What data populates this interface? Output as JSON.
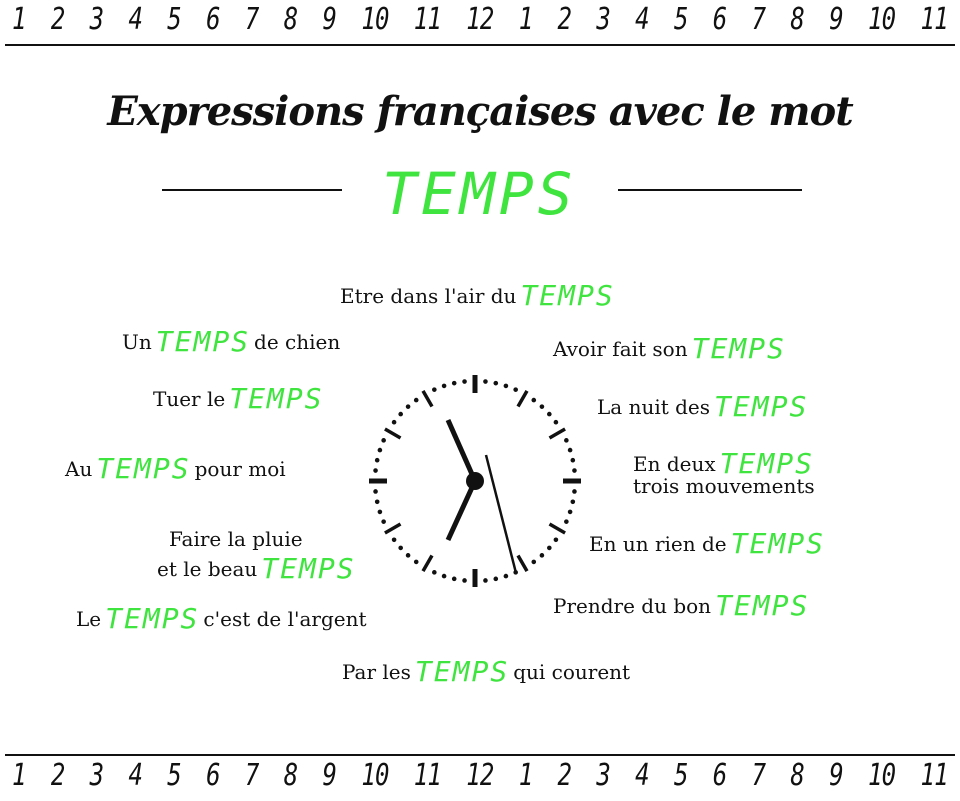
{
  "numbers": [
    "1",
    "2",
    "3",
    "4",
    "5",
    "6",
    "7",
    "8",
    "9",
    "10",
    "11",
    "12",
    "1",
    "2",
    "3",
    "4",
    "5",
    "6",
    "7",
    "8",
    "9",
    "10",
    "11"
  ],
  "title": "Expressions françaises avec le mot",
  "keyword": "TEMPS",
  "colors": {
    "keyword": "#3fe43f",
    "ink": "#111111"
  },
  "phrases": [
    {
      "before": "Etre dans l'air du",
      "after": ""
    },
    {
      "before": "Un",
      "after": "de chien"
    },
    {
      "before": "Avoir fait son",
      "after": ""
    },
    {
      "before": "Tuer le",
      "after": ""
    },
    {
      "before": "La nuit des",
      "after": ""
    },
    {
      "before": "Au",
      "after": "pour moi"
    },
    {
      "before": "En deux",
      "after": "",
      "line2": "trois mouvements"
    },
    {
      "before": "et le beau",
      "after": "",
      "line1": "Faire la pluie"
    },
    {
      "before": "En un rien de",
      "after": ""
    },
    {
      "before": "Le",
      "after": "c'est de l'argent"
    },
    {
      "before": "Prendre du bon",
      "after": ""
    },
    {
      "before": "Par les",
      "after": "qui courent"
    }
  ],
  "clock_icon": "analog-clock"
}
